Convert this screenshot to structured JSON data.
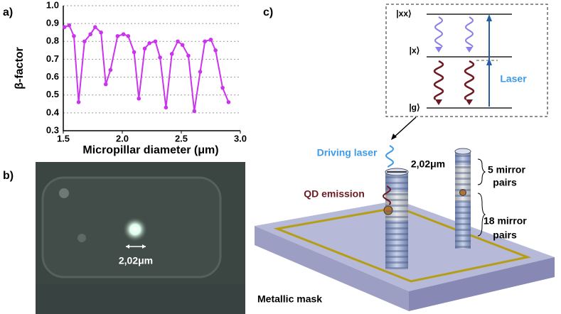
{
  "panel_labels": [
    "a)",
    "b)",
    "c)"
  ],
  "chart_data": {
    "type": "line",
    "ylabel": "β-factor",
    "xlabel": "Micropillar diameter (μm)",
    "color": "#cc33ee",
    "grid": true,
    "x": [
      1.51,
      1.55,
      1.59,
      1.63,
      1.68,
      1.73,
      1.77,
      1.82,
      1.86,
      1.9,
      1.96,
      2.01,
      2.05,
      2.1,
      2.14,
      2.19,
      2.23,
      2.28,
      2.32,
      2.37,
      2.42,
      2.47,
      2.51,
      2.56,
      2.61,
      2.66,
      2.7,
      2.75,
      2.79,
      2.85,
      2.9
    ],
    "values": [
      0.88,
      0.89,
      0.83,
      0.46,
      0.8,
      0.84,
      0.88,
      0.85,
      0.56,
      0.64,
      0.83,
      0.84,
      0.83,
      0.74,
      0.48,
      0.76,
      0.79,
      0.8,
      0.71,
      0.43,
      0.73,
      0.8,
      0.78,
      0.72,
      0.41,
      0.63,
      0.8,
      0.81,
      0.75,
      0.54,
      0.46
    ],
    "xlim": [
      1.5,
      3.0
    ],
    "xticks": [
      1.5,
      {
        "value": 2,
        "label": "2.0"
      },
      2.5,
      {
        "value": 3,
        "label": "3.0"
      }
    ],
    "ylim": [
      0.3,
      1.0
    ],
    "yticks": [
      0.3,
      0.4,
      0.5,
      0.6,
      0.7,
      0.8,
      0.9,
      {
        "value": 1,
        "label": "1.0"
      }
    ]
  },
  "panel_b": {
    "scale_label": "2,02μm"
  },
  "panel_c": {
    "levels": [
      "|xx⟩",
      "|x⟩",
      "|g⟩"
    ],
    "laser": "Laser",
    "driving_laser": "Driving laser",
    "diameter": "2,02μm",
    "qd_emission": "QD emission",
    "top_mirror": [
      "5  mirror",
      "pairs"
    ],
    "bottom_mirror": [
      "18 mirror",
      "pairs"
    ],
    "mask": "Metallic mask"
  }
}
